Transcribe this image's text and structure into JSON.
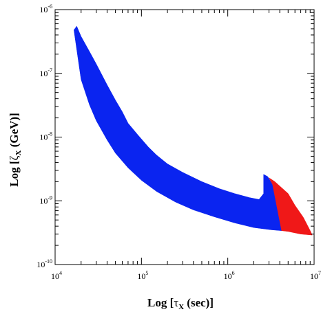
{
  "chart_data": {
    "type": "area",
    "title": "",
    "xlabel": {
      "main": "Log [",
      "greek": "τ",
      "sub": "X",
      "unit": " (sec)]"
    },
    "ylabel": {
      "main": "Log [",
      "greek": "ζ",
      "sub": "X",
      "unit": " (GeV)]"
    },
    "xscale": "log",
    "yscale": "log",
    "xlim": [
      10000,
      10000000
    ],
    "ylim": [
      1e-10,
      1e-06
    ],
    "x_ticks": [
      {
        "value": 10000,
        "base": "10",
        "exp": "4"
      },
      {
        "value": 100000,
        "base": "10",
        "exp": "5"
      },
      {
        "value": 1000000,
        "base": "10",
        "exp": "6"
      },
      {
        "value": 10000000,
        "base": "10",
        "exp": "7"
      }
    ],
    "y_ticks": [
      {
        "value": 1e-10,
        "base": "10",
        "exp": "-10"
      },
      {
        "value": 1e-09,
        "base": "10",
        "exp": "-9"
      },
      {
        "value": 1e-08,
        "base": "10",
        "exp": "-8"
      },
      {
        "value": 1e-07,
        "base": "10",
        "exp": "-7"
      },
      {
        "value": 1e-06,
        "base": "10",
        "exp": "-6"
      }
    ],
    "grid": false,
    "legend": "none",
    "regions": [
      {
        "color": "#0a24f0",
        "polygon": [
          [
            17800,
            5.5e-07
          ],
          [
            20000,
            3.8e-07
          ],
          [
            25000,
            2.2e-07
          ],
          [
            30000,
            1.4e-07
          ],
          [
            40000,
            6.6e-08
          ],
          [
            50000,
            3.8e-08
          ],
          [
            60000,
            2.5e-08
          ],
          [
            70000,
            1.65e-08
          ],
          [
            90000,
            1.1e-08
          ],
          [
            120000,
            7e-09
          ],
          [
            150000,
            5.2e-09
          ],
          [
            200000,
            3.8e-09
          ],
          [
            300000,
            2.8e-09
          ],
          [
            500000,
            2e-09
          ],
          [
            800000,
            1.55e-09
          ],
          [
            1200000,
            1.3e-09
          ],
          [
            1800000,
            1.12e-09
          ],
          [
            2300000,
            1.05e-09
          ],
          [
            2600000,
            1.3e-09
          ],
          [
            2600000,
            2.6e-09
          ],
          [
            2900000,
            2.4e-09
          ],
          [
            3300000,
            1.8e-09
          ],
          [
            4200000,
            3.4e-10
          ],
          [
            3200000,
            3.5e-10
          ],
          [
            2000000,
            3.8e-10
          ],
          [
            1200000,
            4.5e-10
          ],
          [
            700000,
            5.6e-10
          ],
          [
            400000,
            7.2e-10
          ],
          [
            250000,
            9.5e-10
          ],
          [
            150000,
            1.4e-09
          ],
          [
            100000,
            2.1e-09
          ],
          [
            70000,
            3.3e-09
          ],
          [
            50000,
            5.6e-09
          ],
          [
            40000,
            9e-09
          ],
          [
            30000,
            1.8e-08
          ],
          [
            25000,
            3.2e-08
          ],
          [
            20000,
            8e-08
          ],
          [
            16500,
            4.8e-07
          ]
        ]
      },
      {
        "color": "#f01818",
        "polygon": [
          [
            3000000,
            2.3e-09
          ],
          [
            3500000,
            2e-09
          ],
          [
            5000000,
            1.3e-09
          ],
          [
            6000000,
            8.5e-10
          ],
          [
            7500000,
            5.5e-10
          ],
          [
            9000000,
            3.4e-10
          ],
          [
            9500000,
            2.9e-10
          ],
          [
            7000000,
            3e-10
          ],
          [
            5000000,
            3.3e-10
          ],
          [
            4200000,
            3.4e-10
          ],
          [
            3300000,
            1.8e-09
          ]
        ]
      }
    ]
  }
}
